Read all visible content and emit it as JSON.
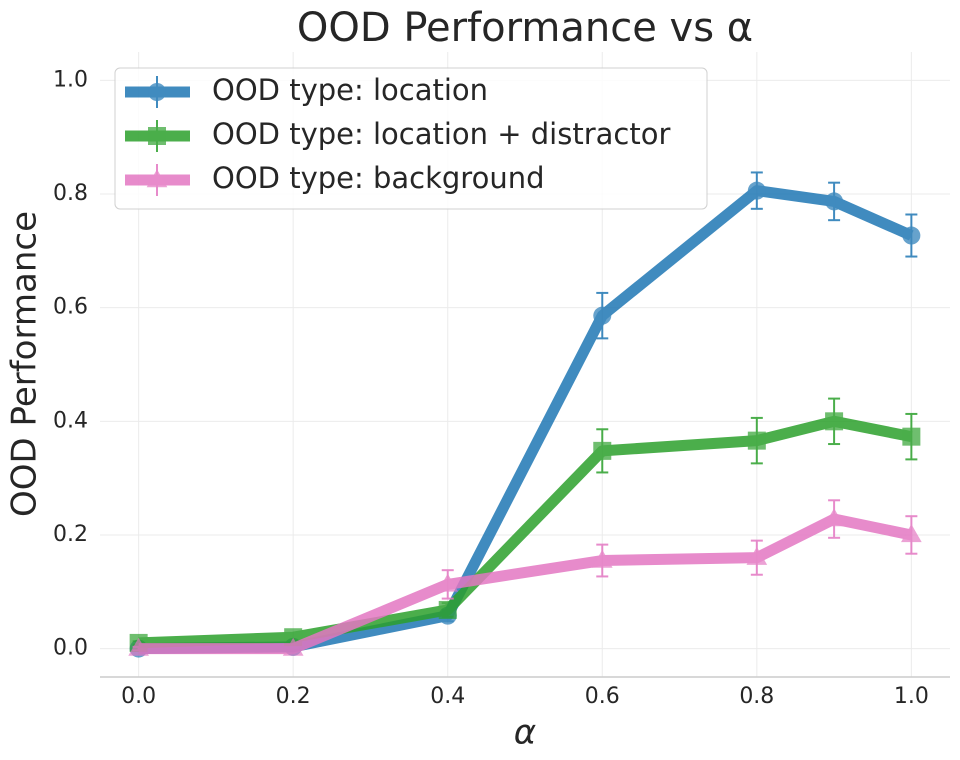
{
  "chart_data": {
    "type": "line",
    "title": "OOD Performance vs α",
    "xlabel": "α",
    "ylabel": "OOD Performance",
    "x": [
      0.0,
      0.2,
      0.4,
      0.6,
      0.8,
      0.9,
      1.0
    ],
    "series": [
      {
        "name": "OOD type: location",
        "color": "#1f77b4",
        "marker": "o",
        "values": [
          0.0,
          0.003,
          0.058,
          0.586,
          0.806,
          0.787,
          0.727
        ],
        "errors": [
          0.003,
          0.003,
          0.01,
          0.04,
          0.032,
          0.033,
          0.037
        ]
      },
      {
        "name": "OOD type: location + distractor",
        "color": "#2ca02c",
        "marker": "s",
        "values": [
          0.01,
          0.02,
          0.068,
          0.348,
          0.366,
          0.4,
          0.373
        ],
        "errors": [
          0.003,
          0.003,
          0.012,
          0.038,
          0.04,
          0.04,
          0.04
        ]
      },
      {
        "name": "OOD type: background",
        "color": "#e377c2",
        "marker": "^",
        "values": [
          0.0,
          0.0,
          0.113,
          0.155,
          0.16,
          0.228,
          0.2
        ],
        "errors": [
          0.003,
          0.003,
          0.025,
          0.028,
          0.03,
          0.033,
          0.033
        ]
      }
    ],
    "xlim": [
      -0.05,
      1.05
    ],
    "ylim": [
      -0.05,
      1.05
    ],
    "xticks": [
      {
        "value": 0,
        "label": "0.0"
      },
      0.2,
      0.4,
      0.6,
      0.8,
      {
        "value": 1,
        "label": "1.0"
      }
    ],
    "yticks": [
      {
        "value": 0,
        "label": "0.0"
      },
      0.2,
      0.4,
      0.6,
      0.8,
      {
        "value": 1,
        "label": "1.0"
      }
    ],
    "grid": true,
    "legend": "upper left"
  }
}
